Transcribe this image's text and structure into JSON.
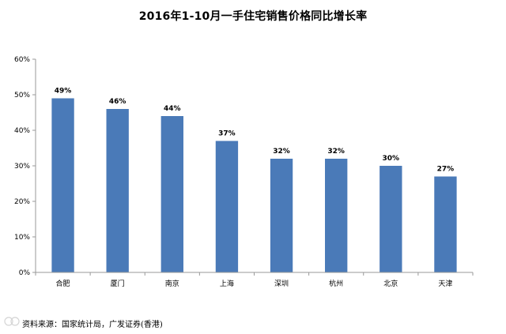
{
  "chart_data": {
    "type": "bar",
    "title": "2016年1-10月一手住宅销售价格同比增长率",
    "categories": [
      "合肥",
      "厦门",
      "南京",
      "上海",
      "深圳",
      "杭州",
      "北京",
      "天津"
    ],
    "values": [
      49,
      46,
      44,
      37,
      32,
      32,
      30,
      27
    ],
    "value_labels": [
      "49%",
      "46%",
      "44%",
      "37%",
      "32%",
      "32%",
      "30%",
      "27%"
    ],
    "y_ticks": [
      0,
      10,
      20,
      30,
      40,
      50,
      60
    ],
    "y_tick_labels": [
      "0%",
      "10%",
      "20%",
      "30%",
      "40%",
      "50%",
      "60%"
    ],
    "ylim": [
      0,
      60
    ],
    "xlabel": "",
    "ylabel": "",
    "grid": false,
    "bar_color": "#4a7ab8",
    "axis_color": "#999999"
  },
  "source": "资料来源：国家统计局，广发证券(香港)"
}
